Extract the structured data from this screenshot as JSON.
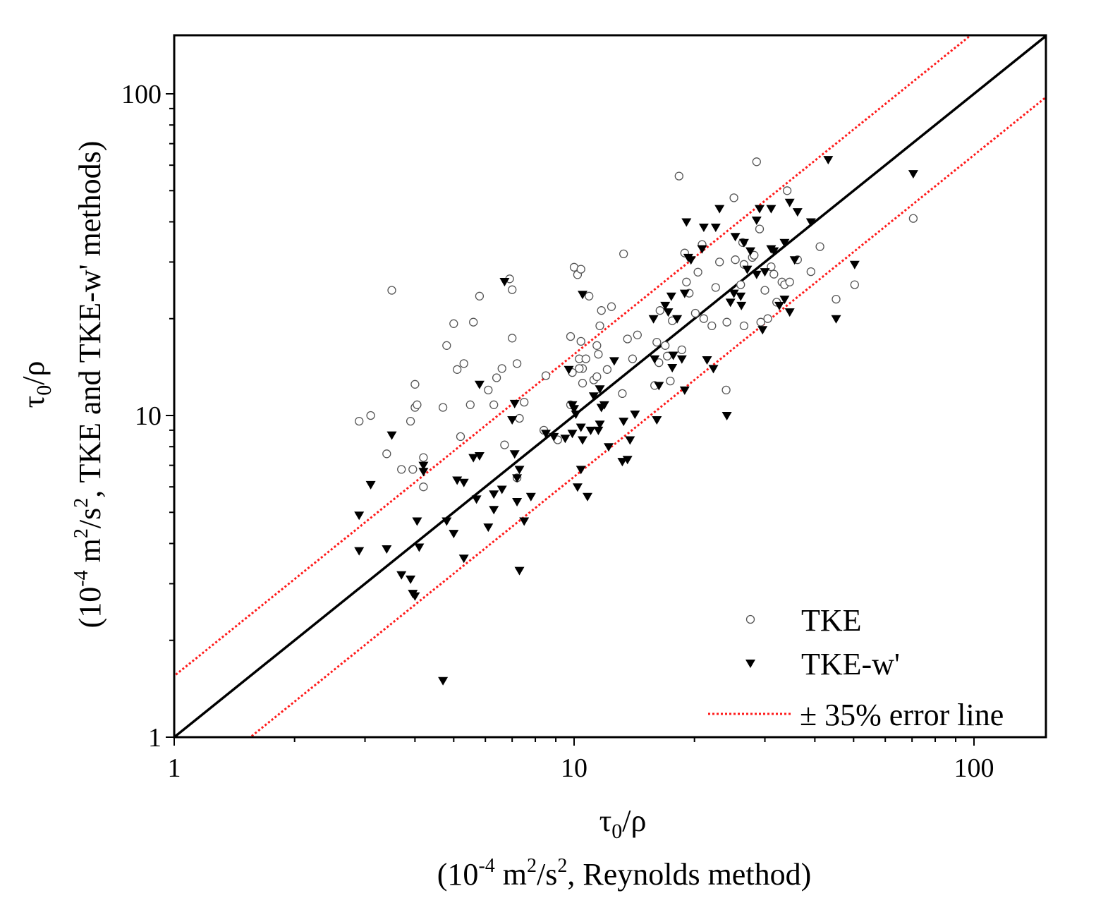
{
  "chart_data": {
    "type": "scatter",
    "xscale": "log",
    "yscale": "log",
    "xlim": [
      1,
      150
    ],
    "ylim": [
      1,
      150
    ],
    "xticks": [
      {
        "value": 1,
        "label": "1"
      },
      {
        "value": 10,
        "label": "10"
      },
      {
        "value": 100,
        "label": "100"
      }
    ],
    "yticks": [
      {
        "value": 1,
        "label": "1"
      },
      {
        "value": 10,
        "label": "10"
      },
      {
        "value": 100,
        "label": "100"
      }
    ],
    "xlabel": {
      "line1_main": "τ",
      "line1_sub": "0",
      "line1_rest": "/ρ",
      "line2_a": "(10",
      "line2_sup1": "-4",
      "line2_b": " m",
      "line2_sup2": "2",
      "line2_c": "/s",
      "line2_sup3": "2",
      "line2_d": ", Reynolds method)"
    },
    "ylabel": {
      "line1_main": "τ",
      "line1_sub": "0",
      "line1_rest": "/ρ",
      "line2_a": "(10",
      "line2_sup1": "-4",
      "line2_b": " m",
      "line2_sup2": "2",
      "line2_c": "/s",
      "line2_sup3": "2",
      "line2_d": ", TKE and TKE-w' methods)"
    },
    "legend": {
      "position": "bottom-right",
      "entries": [
        {
          "label": "TKE",
          "marker": "open-circle"
        },
        {
          "label": "TKE-w'",
          "marker": "filled-down-triangle"
        },
        {
          "label": "± 35% error line",
          "marker": "red-dotted-line"
        }
      ]
    },
    "reference_lines": [
      {
        "name": "1:1 line",
        "factor": 1.0,
        "color": "#000000",
        "style": "solid"
      },
      {
        "name": "+35% error line",
        "factor": 1.55,
        "color": "#ff1a1a",
        "style": "dotted"
      },
      {
        "name": "-35% error line",
        "factor": 0.645,
        "color": "#ff1a1a",
        "style": "dotted"
      }
    ],
    "series": [
      {
        "name": "TKE",
        "marker": "open-circle",
        "points": [
          [
            2.9,
            9.6
          ],
          [
            3.1,
            10
          ],
          [
            3.4,
            7.6
          ],
          [
            3.5,
            24.5
          ],
          [
            3.7,
            6.8
          ],
          [
            3.9,
            9.6
          ],
          [
            3.95,
            6.8
          ],
          [
            4.0,
            10.6
          ],
          [
            4.0,
            12.5
          ],
          [
            4.05,
            10.8
          ],
          [
            4.2,
            7.4
          ],
          [
            4.2,
            6.0
          ],
          [
            4.7,
            10.6
          ],
          [
            4.8,
            16.5
          ],
          [
            5.0,
            19.3
          ],
          [
            5.1,
            13.9
          ],
          [
            5.2,
            8.6
          ],
          [
            5.3,
            14.5
          ],
          [
            5.5,
            10.8
          ],
          [
            5.6,
            19.5
          ],
          [
            5.8,
            23.5
          ],
          [
            6.1,
            12
          ],
          [
            6.3,
            10.8
          ],
          [
            6.4,
            13.1
          ],
          [
            6.6,
            14
          ],
          [
            6.7,
            8.1
          ],
          [
            6.9,
            26.6
          ],
          [
            7.0,
            24.6
          ],
          [
            7.0,
            17.4
          ],
          [
            7.2,
            14.5
          ],
          [
            7.3,
            9.8
          ],
          [
            7.5,
            11
          ],
          [
            7.2,
            6.4
          ],
          [
            8.5,
            13.3
          ],
          [
            8.4,
            9
          ],
          [
            9.1,
            8.4
          ],
          [
            9.8,
            10.8
          ],
          [
            9.8,
            17.6
          ],
          [
            9.9,
            13.6
          ],
          [
            10.0,
            28.9
          ],
          [
            10.2,
            27.4
          ],
          [
            10.4,
            28.5
          ],
          [
            10.3,
            15
          ],
          [
            10.5,
            14
          ],
          [
            10.3,
            14
          ],
          [
            10.4,
            17
          ],
          [
            10.5,
            12.6
          ],
          [
            10.7,
            15
          ],
          [
            10.9,
            23.5
          ],
          [
            11.2,
            12.9
          ],
          [
            11.4,
            13.2
          ],
          [
            11.4,
            16.5
          ],
          [
            11.5,
            15.5
          ],
          [
            11.6,
            19
          ],
          [
            11.7,
            21.2
          ],
          [
            12.1,
            13.9
          ],
          [
            12.4,
            21.8
          ],
          [
            13.3,
            31.8
          ],
          [
            13.2,
            11.7
          ],
          [
            13.6,
            17.3
          ],
          [
            14.0,
            15
          ],
          [
            14.4,
            17.8
          ],
          [
            15.9,
            12.4
          ],
          [
            16.1,
            16.9
          ],
          [
            16.3,
            14.6
          ],
          [
            16.4,
            21.2
          ],
          [
            16.9,
            16.5
          ],
          [
            17.1,
            15.3
          ],
          [
            17.4,
            12.8
          ],
          [
            17.6,
            19.7
          ],
          [
            18.3,
            55.5
          ],
          [
            18.6,
            16
          ],
          [
            18.9,
            32
          ],
          [
            19.1,
            26
          ],
          [
            19.4,
            24
          ],
          [
            20.1,
            20.8
          ],
          [
            20.4,
            27.9
          ],
          [
            20.9,
            34
          ],
          [
            21.1,
            20
          ],
          [
            22.1,
            19
          ],
          [
            22.6,
            25
          ],
          [
            23.1,
            30
          ],
          [
            24,
            12
          ],
          [
            24.1,
            19.5
          ],
          [
            25.1,
            47.5
          ],
          [
            25.3,
            30.5
          ],
          [
            26.1,
            25.5
          ],
          [
            26.4,
            34.5
          ],
          [
            26.6,
            29.5
          ],
          [
            26.6,
            19
          ],
          [
            27.9,
            31
          ],
          [
            28.2,
            31.5
          ],
          [
            28.6,
            61.5
          ],
          [
            29.1,
            38
          ],
          [
            29.3,
            19.5
          ],
          [
            30.0,
            24.5
          ],
          [
            30.5,
            20
          ],
          [
            31.1,
            29
          ],
          [
            31.6,
            27.5
          ],
          [
            32.1,
            22.5
          ],
          [
            33.1,
            26
          ],
          [
            33.6,
            25.5
          ],
          [
            34.1,
            50
          ],
          [
            34.6,
            26
          ],
          [
            36.2,
            30.5
          ],
          [
            39.1,
            28
          ],
          [
            41.2,
            33.5
          ],
          [
            45.2,
            23
          ],
          [
            50.3,
            25.5
          ],
          [
            70.5,
            41
          ]
        ]
      },
      {
        "name": "TKE-w'",
        "marker": "filled-down-triangle",
        "points": [
          [
            2.9,
            4.9
          ],
          [
            2.9,
            3.8
          ],
          [
            3.1,
            6.1
          ],
          [
            3.4,
            3.85
          ],
          [
            3.5,
            8.7
          ],
          [
            3.7,
            3.2
          ],
          [
            3.9,
            3.1
          ],
          [
            3.95,
            2.8
          ],
          [
            4.0,
            2.75
          ],
          [
            4.05,
            4.7
          ],
          [
            4.1,
            3.9
          ],
          [
            4.2,
            7.0
          ],
          [
            4.2,
            6.7
          ],
          [
            4.7,
            1.5
          ],
          [
            4.8,
            4.7
          ],
          [
            5.0,
            4.3
          ],
          [
            5.1,
            6.3
          ],
          [
            5.3,
            6.2
          ],
          [
            5.3,
            3.6
          ],
          [
            5.6,
            7.4
          ],
          [
            5.7,
            5.5
          ],
          [
            5.8,
            7.5
          ],
          [
            5.8,
            12.5
          ],
          [
            6.1,
            4.5
          ],
          [
            6.3,
            5.1
          ],
          [
            6.3,
            5.7
          ],
          [
            6.6,
            5.9
          ],
          [
            6.7,
            26.1
          ],
          [
            7.0,
            9.7
          ],
          [
            7.1,
            10.9
          ],
          [
            7.1,
            7.6
          ],
          [
            7.2,
            5.4
          ],
          [
            7.2,
            6.4
          ],
          [
            7.3,
            6.8
          ],
          [
            7.3,
            3.3
          ],
          [
            7.5,
            4.7
          ],
          [
            7.8,
            5.6
          ],
          [
            8.5,
            8.8
          ],
          [
            8.9,
            8.6
          ],
          [
            9.5,
            8.5
          ],
          [
            9.7,
            13.9
          ],
          [
            9.9,
            10.8
          ],
          [
            9.9,
            8.8
          ],
          [
            10.0,
            10.5
          ],
          [
            10.1,
            10.1
          ],
          [
            10.2,
            6.0
          ],
          [
            10.4,
            9.2
          ],
          [
            10.4,
            6.8
          ],
          [
            10.5,
            8.4
          ],
          [
            10.5,
            23.8
          ],
          [
            10.8,
            5.6
          ],
          [
            11.0,
            9.0
          ],
          [
            11.2,
            11.5
          ],
          [
            11.5,
            9.0
          ],
          [
            11.6,
            9.4
          ],
          [
            11.6,
            12.1
          ],
          [
            11.7,
            10.6
          ],
          [
            11.9,
            10.8
          ],
          [
            12.2,
            8.0
          ],
          [
            12.6,
            14.8
          ],
          [
            13.2,
            7.2
          ],
          [
            13.3,
            9.6
          ],
          [
            13.6,
            7.3
          ],
          [
            13.8,
            8.4
          ],
          [
            14.2,
            10.1
          ],
          [
            15.8,
            20
          ],
          [
            15.9,
            15.0
          ],
          [
            16.1,
            9.7
          ],
          [
            16.3,
            12.4
          ],
          [
            16.9,
            22
          ],
          [
            17.2,
            21
          ],
          [
            17.5,
            23.5
          ],
          [
            17.6,
            14.1
          ],
          [
            17.7,
            15.4
          ],
          [
            18.1,
            20
          ],
          [
            18.6,
            15.0
          ],
          [
            18.9,
            24
          ],
          [
            18.9,
            12
          ],
          [
            19.1,
            40
          ],
          [
            19.3,
            31
          ],
          [
            19.6,
            30.5
          ],
          [
            20.9,
            33
          ],
          [
            21.1,
            38.5
          ],
          [
            21.5,
            14.9
          ],
          [
            22.3,
            14
          ],
          [
            22.6,
            38.5
          ],
          [
            23.1,
            44
          ],
          [
            24.1,
            10
          ],
          [
            24.6,
            22.5
          ],
          [
            25.1,
            24
          ],
          [
            25.3,
            36
          ],
          [
            26.1,
            23.5
          ],
          [
            26.2,
            22
          ],
          [
            26.6,
            34.5
          ],
          [
            27.1,
            28.5
          ],
          [
            27.6,
            32.5
          ],
          [
            28.6,
            40.5
          ],
          [
            29.6,
            18.5
          ],
          [
            28.6,
            27.5
          ],
          [
            29.1,
            44
          ],
          [
            30.0,
            28
          ],
          [
            31.1,
            44
          ],
          [
            31.1,
            33
          ],
          [
            31.6,
            32.5
          ],
          [
            32.6,
            22
          ],
          [
            33.6,
            23
          ],
          [
            33.6,
            34.5
          ],
          [
            34.6,
            21
          ],
          [
            34.6,
            46
          ],
          [
            35.6,
            30.5
          ],
          [
            36.2,
            43
          ],
          [
            39.1,
            40
          ],
          [
            43.2,
            62.5
          ],
          [
            45.2,
            20
          ],
          [
            50.3,
            29.5
          ],
          [
            70.5,
            56.5
          ]
        ]
      }
    ]
  }
}
